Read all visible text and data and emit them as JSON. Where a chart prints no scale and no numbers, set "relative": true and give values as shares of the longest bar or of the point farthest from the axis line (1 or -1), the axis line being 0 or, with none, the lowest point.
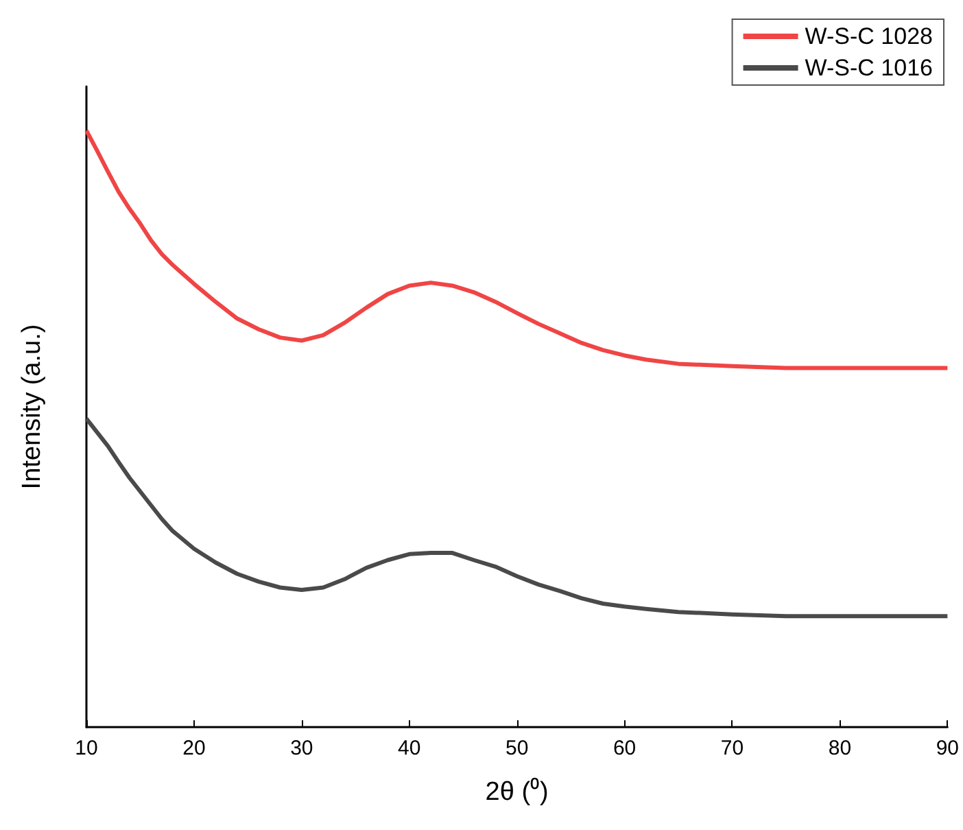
{
  "chart_data": {
    "type": "line",
    "relative": true,
    "xlabel": "2θ (⁰)",
    "ylabel": "Intensity (a.u.)",
    "x": [
      10,
      11,
      12,
      13,
      14,
      15,
      16,
      17,
      18,
      20,
      22,
      24,
      26,
      28,
      30,
      32,
      34,
      36,
      38,
      40,
      42,
      44,
      46,
      48,
      50,
      52,
      54,
      56,
      58,
      60,
      62,
      65,
      70,
      75,
      80,
      85,
      90
    ],
    "xlim": [
      10,
      90
    ],
    "xticks": [
      10,
      20,
      30,
      40,
      50,
      60,
      70,
      80,
      90
    ],
    "legend": "top right",
    "grid": false,
    "marker": "none",
    "line_style": "solid",
    "series": [
      {
        "name": "W-S-C 1028",
        "color": "#f04545",
        "values": [
          1.0,
          0.966,
          0.931,
          0.897,
          0.869,
          0.844,
          0.816,
          0.793,
          0.775,
          0.743,
          0.713,
          0.685,
          0.667,
          0.653,
          0.648,
          0.657,
          0.678,
          0.703,
          0.726,
          0.74,
          0.745,
          0.74,
          0.729,
          0.713,
          0.694,
          0.676,
          0.66,
          0.644,
          0.632,
          0.623,
          0.616,
          0.609,
          0.605,
          0.602,
          0.602,
          0.602,
          0.602
        ]
      },
      {
        "name": "W-S-C 1016",
        "color": "#4a4a4a",
        "values": [
          0.517,
          0.494,
          0.471,
          0.444,
          0.418,
          0.395,
          0.372,
          0.349,
          0.329,
          0.299,
          0.276,
          0.257,
          0.244,
          0.234,
          0.23,
          0.234,
          0.248,
          0.267,
          0.28,
          0.29,
          0.292,
          0.292,
          0.28,
          0.269,
          0.253,
          0.239,
          0.228,
          0.216,
          0.207,
          0.202,
          0.198,
          0.193,
          0.189,
          0.186,
          0.186,
          0.186,
          0.186
        ]
      }
    ]
  }
}
